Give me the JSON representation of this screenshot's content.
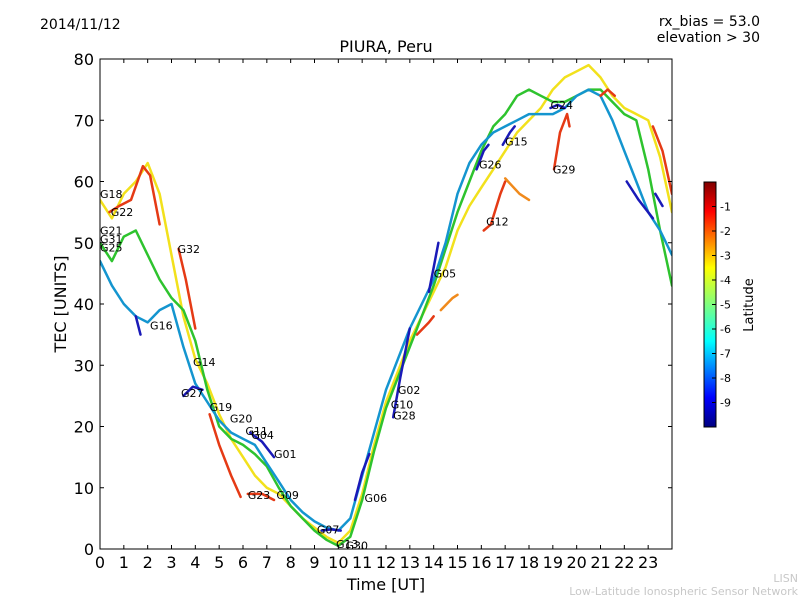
{
  "header": {
    "date": "2014/11/12",
    "rx_bias": "rx_bias = 53.0",
    "elevation": "elevation > 30"
  },
  "footer": {
    "line1": "LISN",
    "line2": "Low-Latitude Ionospheric Sensor Network"
  },
  "chart_data": {
    "type": "line",
    "title": "PIURA, Peru",
    "xlabel": "Time [UT]",
    "ylabel": "TEC [UNITS]",
    "xlim": [
      0,
      24
    ],
    "ylim": [
      0,
      80
    ],
    "xticks": [
      "0",
      "1",
      "2",
      "3",
      "4",
      "5",
      "6",
      "7",
      "8",
      "9",
      "10",
      "11",
      "12",
      "13",
      "14",
      "15",
      "16",
      "17",
      "18",
      "19",
      "20",
      "21",
      "22",
      "23"
    ],
    "yticks": [
      "0",
      "10",
      "20",
      "30",
      "40",
      "50",
      "60",
      "70",
      "80"
    ],
    "grid": false,
    "colorbar": {
      "label": "Latitude",
      "range": [
        -10,
        0
      ],
      "ticks": [
        "-1",
        "-2",
        "-3",
        "-4",
        "-5",
        "-6",
        "-7",
        "-8",
        "-9"
      ],
      "colors": [
        "#00007f",
        "#0000ff",
        "#007fff",
        "#00ffff",
        "#7fff7f",
        "#ffff00",
        "#ff7f00",
        "#ff0000",
        "#7f0000"
      ]
    },
    "satellite_labels": [
      {
        "name": "G18",
        "x": 0.0,
        "y": 58
      },
      {
        "name": "G22",
        "x": 0.45,
        "y": 55
      },
      {
        "name": "G21",
        "x": 0.0,
        "y": 52
      },
      {
        "name": "G31",
        "x": 0.0,
        "y": 50.6
      },
      {
        "name": "G25",
        "x": 0.0,
        "y": 49.2
      },
      {
        "name": "G32",
        "x": 3.25,
        "y": 49
      },
      {
        "name": "G16",
        "x": 2.1,
        "y": 36.5
      },
      {
        "name": "G14",
        "x": 3.9,
        "y": 30.5
      },
      {
        "name": "G27",
        "x": 3.4,
        "y": 25.5
      },
      {
        "name": "G19",
        "x": 4.6,
        "y": 23.2
      },
      {
        "name": "G20",
        "x": 5.45,
        "y": 21.3
      },
      {
        "name": "G11",
        "x": 6.1,
        "y": 19.3
      },
      {
        "name": "G04",
        "x": 6.35,
        "y": 18.6
      },
      {
        "name": "G01",
        "x": 7.3,
        "y": 15.5
      },
      {
        "name": "G23",
        "x": 6.2,
        "y": 8.8
      },
      {
        "name": "G09",
        "x": 7.4,
        "y": 8.8
      },
      {
        "name": "G07",
        "x": 9.1,
        "y": 3.2
      },
      {
        "name": "G13",
        "x": 9.9,
        "y": 0.8
      },
      {
        "name": "G30",
        "x": 10.3,
        "y": 0.6
      },
      {
        "name": "G06",
        "x": 11.1,
        "y": 8.3
      },
      {
        "name": "G02",
        "x": 12.5,
        "y": 26
      },
      {
        "name": "G10",
        "x": 12.2,
        "y": 23.6
      },
      {
        "name": "G28",
        "x": 12.3,
        "y": 21.8
      },
      {
        "name": "G05",
        "x": 14.0,
        "y": 45
      },
      {
        "name": "G12",
        "x": 16.2,
        "y": 53.5
      },
      {
        "name": "G26",
        "x": 15.9,
        "y": 62.8
      },
      {
        "name": "G15",
        "x": 17.0,
        "y": 66.5
      },
      {
        "name": "G24",
        "x": 18.9,
        "y": 72.5
      },
      {
        "name": "G29",
        "x": 19.0,
        "y": 62
      }
    ],
    "series": [
      {
        "color": "#f2e11c",
        "points": [
          [
            0,
            57
          ],
          [
            0.5,
            54
          ],
          [
            1,
            58
          ],
          [
            1.5,
            60
          ],
          [
            2,
            63
          ],
          [
            2.5,
            58
          ],
          [
            3,
            48
          ],
          [
            3.5,
            38
          ],
          [
            4,
            31
          ],
          [
            4.5,
            27
          ],
          [
            5,
            22
          ],
          [
            5.5,
            18
          ],
          [
            6,
            15
          ],
          [
            6.5,
            12
          ],
          [
            7,
            10
          ],
          [
            7.5,
            9
          ],
          [
            8,
            7
          ],
          [
            8.5,
            5
          ],
          [
            9,
            3.5
          ],
          [
            9.5,
            2
          ],
          [
            10,
            1
          ],
          [
            10.5,
            3
          ],
          [
            11,
            9
          ],
          [
            11.5,
            17
          ],
          [
            12,
            24
          ],
          [
            12.5,
            29
          ],
          [
            13,
            34
          ],
          [
            13.5,
            38
          ],
          [
            14,
            42
          ],
          [
            14.5,
            46
          ],
          [
            15,
            52
          ],
          [
            15.5,
            56
          ],
          [
            16,
            59
          ],
          [
            16.5,
            62
          ],
          [
            17,
            65
          ],
          [
            17.5,
            68
          ],
          [
            18,
            70
          ],
          [
            18.5,
            72
          ],
          [
            19,
            75
          ],
          [
            19.5,
            77
          ],
          [
            20,
            78
          ],
          [
            20.5,
            79
          ],
          [
            21,
            77
          ],
          [
            21.5,
            74
          ],
          [
            22,
            72
          ],
          [
            22.5,
            71
          ],
          [
            23,
            70
          ],
          [
            23.5,
            64
          ],
          [
            24,
            55
          ]
        ]
      },
      {
        "color": "#2ec32e",
        "points": [
          [
            0,
            50
          ],
          [
            0.5,
            47
          ],
          [
            1,
            51
          ],
          [
            1.5,
            52
          ],
          [
            2,
            48
          ],
          [
            2.5,
            44
          ],
          [
            3,
            41
          ],
          [
            3.5,
            39
          ],
          [
            4,
            34
          ],
          [
            4.5,
            26
          ],
          [
            5,
            20
          ],
          [
            5.5,
            18
          ],
          [
            6,
            17
          ],
          [
            6.5,
            15.5
          ],
          [
            7,
            13.5
          ],
          [
            7.5,
            10
          ],
          [
            8,
            7
          ],
          [
            8.5,
            5
          ],
          [
            9,
            3
          ],
          [
            9.5,
            1.5
          ],
          [
            10,
            0.5
          ],
          [
            10.5,
            2
          ],
          [
            11,
            8
          ],
          [
            11.5,
            16
          ],
          [
            12,
            23
          ],
          [
            12.5,
            28
          ],
          [
            13,
            33
          ],
          [
            13.5,
            38
          ],
          [
            14,
            43
          ],
          [
            14.5,
            49
          ],
          [
            15,
            55
          ],
          [
            15.5,
            60
          ],
          [
            16,
            65
          ],
          [
            16.5,
            69
          ],
          [
            17,
            71
          ],
          [
            17.5,
            74
          ],
          [
            18,
            75
          ],
          [
            18.5,
            74
          ],
          [
            19,
            73
          ],
          [
            19.5,
            73
          ],
          [
            20,
            74
          ],
          [
            20.5,
            75
          ],
          [
            21,
            75
          ],
          [
            21.5,
            73
          ],
          [
            22,
            71
          ],
          [
            22.5,
            70
          ],
          [
            23,
            62
          ],
          [
            23.5,
            52
          ],
          [
            24,
            43
          ]
        ]
      },
      {
        "color": "#1495cf",
        "points": [
          [
            0,
            47
          ],
          [
            0.5,
            43
          ],
          [
            1,
            40
          ],
          [
            1.5,
            38
          ],
          [
            2,
            37
          ],
          [
            2.5,
            39
          ],
          [
            3,
            40
          ],
          [
            3.5,
            33
          ],
          [
            4,
            27
          ],
          [
            4.5,
            24
          ],
          [
            5,
            21
          ],
          [
            5.5,
            19
          ],
          [
            6,
            18
          ],
          [
            6.5,
            17
          ],
          [
            7,
            14
          ],
          [
            7.5,
            11
          ],
          [
            8,
            8
          ],
          [
            8.5,
            6
          ],
          [
            9,
            4.5
          ],
          [
            9.5,
            3.5
          ],
          [
            10,
            3
          ],
          [
            10.5,
            5
          ],
          [
            11,
            12
          ],
          [
            11.5,
            19
          ],
          [
            12,
            26
          ],
          [
            12.5,
            31
          ],
          [
            13,
            36
          ],
          [
            13.5,
            40
          ],
          [
            14,
            44
          ],
          [
            14.5,
            50
          ],
          [
            15,
            58
          ],
          [
            15.5,
            63
          ],
          [
            16,
            66
          ],
          [
            16.5,
            68
          ],
          [
            17,
            69
          ],
          [
            17.5,
            70
          ],
          [
            18,
            71
          ],
          [
            18.5,
            71
          ],
          [
            19,
            71
          ],
          [
            19.5,
            72
          ],
          [
            20,
            74
          ],
          [
            20.5,
            75
          ],
          [
            21,
            74
          ],
          [
            21.5,
            70
          ],
          [
            22,
            65
          ],
          [
            22.5,
            60
          ],
          [
            23,
            55
          ],
          [
            23.5,
            52
          ],
          [
            24,
            48
          ]
        ]
      },
      {
        "color": "#e53a15",
        "points": [
          [
            0.4,
            55
          ],
          [
            0.8,
            56
          ],
          [
            1.3,
            57
          ],
          [
            1.8,
            62.5
          ],
          [
            2.1,
            61
          ],
          [
            2.5,
            53
          ]
        ]
      },
      {
        "color": "#e53a15",
        "points": [
          [
            3.3,
            49
          ],
          [
            3.6,
            44
          ],
          [
            4,
            36
          ]
        ]
      },
      {
        "color": "#e53a15",
        "points": [
          [
            4.6,
            22
          ],
          [
            5,
            17
          ],
          [
            5.5,
            12
          ],
          [
            5.9,
            8.5
          ]
        ]
      },
      {
        "color": "#e53a15",
        "points": [
          [
            6.2,
            9
          ],
          [
            6.8,
            9
          ],
          [
            7.3,
            8
          ]
        ]
      },
      {
        "color": "#e53a15",
        "points": [
          [
            16.1,
            52
          ],
          [
            16.4,
            53
          ],
          [
            16.8,
            58
          ],
          [
            17,
            60
          ]
        ]
      },
      {
        "color": "#f08a1c",
        "points": [
          [
            17,
            60.5
          ],
          [
            17.6,
            58
          ],
          [
            18,
            57
          ]
        ]
      },
      {
        "color": "#e53a15",
        "points": [
          [
            19.05,
            62
          ],
          [
            19.3,
            68
          ],
          [
            19.6,
            71
          ],
          [
            19.7,
            69
          ]
        ]
      },
      {
        "color": "#e53a15",
        "points": [
          [
            21,
            74
          ],
          [
            21.3,
            75
          ],
          [
            21.6,
            74
          ]
        ]
      },
      {
        "color": "#e53a15",
        "points": [
          [
            23.2,
            69
          ],
          [
            23.6,
            65
          ],
          [
            24,
            58
          ]
        ]
      },
      {
        "color": "#f08a1c",
        "points": [
          [
            14.3,
            39
          ],
          [
            14.8,
            41
          ],
          [
            15,
            41.5
          ]
        ]
      },
      {
        "color": "#e53a15",
        "points": [
          [
            13.3,
            35
          ],
          [
            13.8,
            37
          ],
          [
            14,
            38
          ]
        ]
      },
      {
        "color": "#1a1ab8",
        "points": [
          [
            1.7,
            35
          ],
          [
            1.5,
            38
          ]
        ]
      },
      {
        "color": "#1a1ab8",
        "points": [
          [
            3.5,
            25
          ],
          [
            3.9,
            26.5
          ],
          [
            4.3,
            26
          ]
        ]
      },
      {
        "color": "#1a1ab8",
        "points": [
          [
            6.3,
            19
          ],
          [
            6.8,
            17.5
          ],
          [
            7.3,
            15
          ]
        ]
      },
      {
        "color": "#1a1ab8",
        "points": [
          [
            9.3,
            3
          ],
          [
            9.7,
            3.2
          ],
          [
            10.1,
            3
          ]
        ]
      },
      {
        "color": "#1a1ab8",
        "points": [
          [
            10.7,
            8
          ],
          [
            11,
            12.5
          ],
          [
            11.3,
            15.5
          ]
        ]
      },
      {
        "color": "#1a1ab8",
        "points": [
          [
            12.3,
            21.5
          ],
          [
            12.6,
            28
          ],
          [
            13.0,
            36
          ]
        ]
      },
      {
        "color": "#1a1ab8",
        "points": [
          [
            13.8,
            42
          ],
          [
            14.0,
            46
          ],
          [
            14.2,
            50
          ]
        ]
      },
      {
        "color": "#1a1ab8",
        "points": [
          [
            15.8,
            62
          ],
          [
            16.1,
            65
          ],
          [
            16.3,
            66
          ]
        ]
      },
      {
        "color": "#1a1ab8",
        "points": [
          [
            16.9,
            66
          ],
          [
            17.2,
            68
          ],
          [
            17.4,
            69
          ]
        ]
      },
      {
        "color": "#1a1ab8",
        "points": [
          [
            18.9,
            72
          ],
          [
            19.2,
            72.5
          ],
          [
            19.5,
            72
          ]
        ]
      },
      {
        "color": "#1a1ab8",
        "points": [
          [
            22.1,
            60
          ],
          [
            22.6,
            57
          ],
          [
            23.2,
            54
          ]
        ]
      },
      {
        "color": "#1a1ab8",
        "points": [
          [
            23.3,
            58
          ],
          [
            23.6,
            56
          ]
        ]
      }
    ]
  }
}
